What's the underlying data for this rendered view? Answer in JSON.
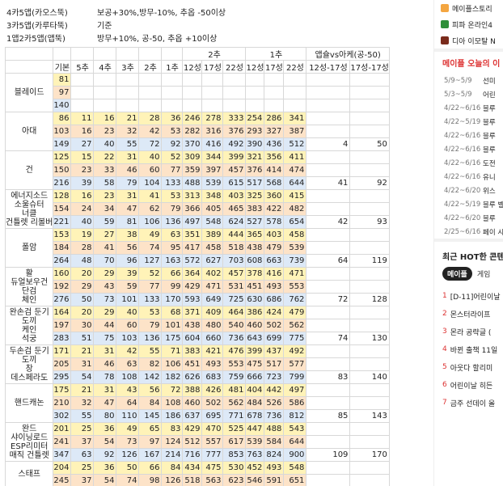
{
  "legend": [
    [
      "4카5앱(카오스뚝)",
      "보공+30%,방무-10%, 추옵 -50이상"
    ],
    [
      "3카5앱(카루타뚝)",
      "기준"
    ],
    [
      "1앱2카5앱(앱뚝)",
      "방무+10%, 공-50, 추옵 +10이상"
    ]
  ],
  "group_headers": {
    "g2": "2추",
    "g1": "1추",
    "gv": "앱슐vs아케(공-50)"
  },
  "columns": [
    "기본",
    "5추",
    "4추",
    "3추",
    "2추",
    "1추",
    "12성",
    "17성",
    "22성",
    "12성",
    "17성",
    "22성",
    "12성-17성",
    "17성-17성"
  ],
  "rows": [
    {
      "label": "블레이드",
      "cells": [
        [
          "81"
        ],
        [
          "97"
        ],
        [
          "140"
        ]
      ]
    },
    {
      "label": "아대",
      "cells": [
        [
          "86",
          "11",
          "16",
          "21",
          "28",
          "36",
          "246",
          "278",
          "333",
          "254",
          "286",
          "341",
          "",
          ""
        ],
        [
          "103",
          "16",
          "23",
          "32",
          "42",
          "53",
          "282",
          "316",
          "376",
          "293",
          "327",
          "387",
          "",
          ""
        ],
        [
          "149",
          "27",
          "40",
          "55",
          "72",
          "92",
          "370",
          "416",
          "492",
          "390",
          "436",
          "512",
          "4",
          "50"
        ]
      ]
    },
    {
      "label": "건",
      "cells": [
        [
          "125",
          "15",
          "22",
          "31",
          "40",
          "52",
          "309",
          "344",
          "399",
          "321",
          "356",
          "411",
          "",
          ""
        ],
        [
          "150",
          "23",
          "33",
          "46",
          "60",
          "77",
          "359",
          "397",
          "457",
          "376",
          "414",
          "474",
          "",
          ""
        ],
        [
          "216",
          "39",
          "58",
          "79",
          "104",
          "133",
          "488",
          "539",
          "615",
          "517",
          "568",
          "644",
          "41",
          "92"
        ]
      ]
    },
    {
      "label": "에너지소드\n소울슈터\n너클\n건틀렛 리볼버",
      "cells": [
        [
          "128",
          "16",
          "23",
          "31",
          "41",
          "53",
          "313",
          "348",
          "403",
          "325",
          "360",
          "415",
          "",
          ""
        ],
        [
          "154",
          "24",
          "34",
          "47",
          "62",
          "79",
          "366",
          "405",
          "465",
          "383",
          "422",
          "482",
          "",
          ""
        ],
        [
          "221",
          "40",
          "59",
          "81",
          "106",
          "136",
          "497",
          "548",
          "624",
          "527",
          "578",
          "654",
          "42",
          "93"
        ]
      ]
    },
    {
      "label": "폴암",
      "cells": [
        [
          "153",
          "19",
          "27",
          "38",
          "49",
          "63",
          "351",
          "389",
          "444",
          "365",
          "403",
          "458",
          "",
          ""
        ],
        [
          "184",
          "28",
          "41",
          "56",
          "74",
          "95",
          "417",
          "458",
          "518",
          "438",
          "479",
          "539",
          "",
          ""
        ],
        [
          "264",
          "48",
          "70",
          "96",
          "127",
          "163",
          "572",
          "627",
          "703",
          "608",
          "663",
          "739",
          "64",
          "119"
        ]
      ]
    },
    {
      "label": "활\n듀얼보우건\n단검\n체인",
      "cells": [
        [
          "160",
          "20",
          "29",
          "39",
          "52",
          "66",
          "364",
          "402",
          "457",
          "378",
          "416",
          "471",
          "",
          ""
        ],
        [
          "192",
          "29",
          "43",
          "59",
          "77",
          "99",
          "429",
          "471",
          "531",
          "451",
          "493",
          "553",
          "",
          ""
        ],
        [
          "276",
          "50",
          "73",
          "101",
          "133",
          "170",
          "593",
          "649",
          "725",
          "630",
          "686",
          "762",
          "72",
          "128"
        ]
      ]
    },
    {
      "label": "완손검 둔기\n도끼\n케인\n석궁",
      "cells": [
        [
          "164",
          "20",
          "29",
          "40",
          "53",
          "68",
          "371",
          "409",
          "464",
          "386",
          "424",
          "479",
          "",
          ""
        ],
        [
          "197",
          "30",
          "44",
          "60",
          "79",
          "101",
          "438",
          "480",
          "540",
          "460",
          "502",
          "562",
          "",
          ""
        ],
        [
          "283",
          "51",
          "75",
          "103",
          "136",
          "175",
          "604",
          "660",
          "736",
          "643",
          "699",
          "775",
          "74",
          "130"
        ]
      ]
    },
    {
      "label": "두손검 둔기\n도끼\n창\n데스페라도",
      "cells": [
        [
          "171",
          "21",
          "31",
          "42",
          "55",
          "71",
          "383",
          "421",
          "476",
          "399",
          "437",
          "492",
          "",
          ""
        ],
        [
          "205",
          "31",
          "46",
          "63",
          "82",
          "106",
          "451",
          "493",
          "553",
          "475",
          "517",
          "577",
          "",
          ""
        ],
        [
          "295",
          "54",
          "78",
          "108",
          "142",
          "182",
          "626",
          "683",
          "759",
          "666",
          "723",
          "799",
          "83",
          "140"
        ]
      ]
    },
    {
      "label": "핸드캐논",
      "cells": [
        [
          "175",
          "21",
          "31",
          "43",
          "56",
          "72",
          "388",
          "426",
          "481",
          "404",
          "442",
          "497",
          "",
          ""
        ],
        [
          "210",
          "32",
          "47",
          "64",
          "84",
          "108",
          "460",
          "502",
          "562",
          "484",
          "526",
          "586",
          "",
          ""
        ],
        [
          "302",
          "55",
          "80",
          "110",
          "145",
          "186",
          "637",
          "695",
          "771",
          "678",
          "736",
          "812",
          "85",
          "143"
        ]
      ]
    },
    {
      "label": "완드\n샤이닝로드\nESP리미터\n매직 건틀렛",
      "cells": [
        [
          "201",
          "25",
          "36",
          "49",
          "65",
          "83",
          "429",
          "470",
          "525",
          "447",
          "488",
          "543",
          "",
          ""
        ],
        [
          "241",
          "37",
          "54",
          "73",
          "97",
          "124",
          "512",
          "557",
          "617",
          "539",
          "584",
          "644",
          "",
          ""
        ],
        [
          "347",
          "63",
          "92",
          "126",
          "167",
          "214",
          "716",
          "777",
          "853",
          "763",
          "824",
          "900",
          "109",
          "170"
        ]
      ]
    },
    {
      "label": "스태프",
      "cells": [
        [
          "204",
          "25",
          "36",
          "50",
          "66",
          "84",
          "434",
          "475",
          "530",
          "452",
          "493",
          "548",
          "",
          ""
        ],
        [
          "245",
          "37",
          "54",
          "74",
          "98",
          "126",
          "518",
          "563",
          "623",
          "546",
          "591",
          "651",
          "",
          ""
        ]
      ]
    }
  ],
  "side": {
    "sites": [
      {
        "name": "메이플스토리",
        "color": "#f4a641"
      },
      {
        "name": "피파 온라인4",
        "color": "#2f8f3a"
      },
      {
        "name": "디아 이모탈 N",
        "color": "#7a2b1c"
      }
    ],
    "news_title": "메이플 오늘의 이",
    "news": [
      {
        "d": "5/9~5/9",
        "t": "선미"
      },
      {
        "d": "5/3~5/9",
        "t": "어린"
      },
      {
        "d": "4/22~6/16",
        "t": "블루"
      },
      {
        "d": "4/22~5/19",
        "t": "블루"
      },
      {
        "d": "4/22~6/16",
        "t": "블루"
      },
      {
        "d": "4/22~6/16",
        "t": "블루"
      },
      {
        "d": "4/22~6/16",
        "t": "도전"
      },
      {
        "d": "4/22~6/16",
        "t": "유니"
      },
      {
        "d": "4/22~6/20",
        "t": "위스"
      },
      {
        "d": "4/22~5/19",
        "t": "블루 벨"
      },
      {
        "d": "4/22~6/20",
        "t": "블루"
      },
      {
        "d": "2/25~6/16",
        "t": "페이 시즌"
      }
    ],
    "hot_title": "최근 HOT한 콘텐",
    "tabs": [
      "메이플",
      "게임"
    ],
    "ranks": [
      "[D-11]어린이날",
      "몬스터라이프",
      "몬라 공략글 (",
      "바뀐 출책 11일",
      "아웃다 할리미",
      "어린이날 히든",
      "금주 선데이 올"
    ]
  }
}
